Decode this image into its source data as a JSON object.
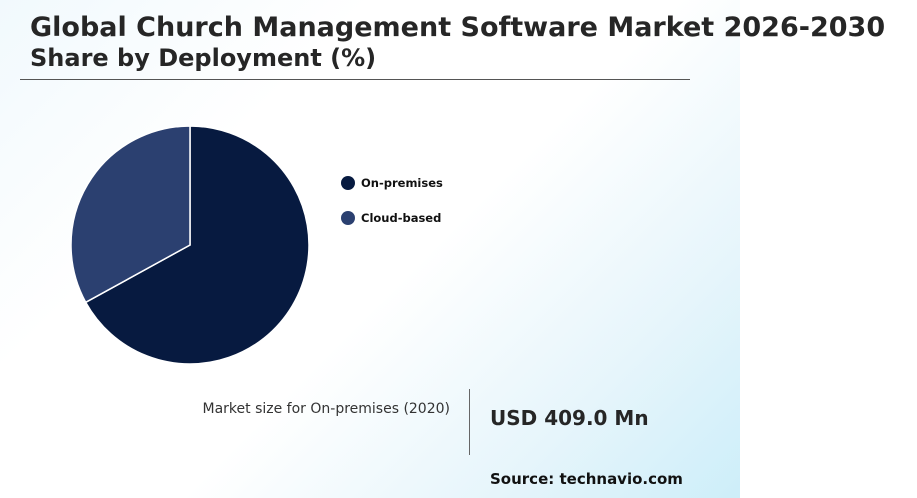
{
  "header": {
    "title": "Global Church Management Software Market 2026-2030",
    "subtitle": "Share by Deployment (%)"
  },
  "chart_data": {
    "type": "pie",
    "categories": [
      "On-premises",
      "Cloud-based"
    ],
    "values": [
      67,
      33
    ],
    "colors": [
      "#071a40",
      "#2b4070"
    ],
    "start_angle_deg": 0,
    "direction": "clockwise",
    "legend_position": "right"
  },
  "kpi": {
    "label": "Market size for On-premises (2020)",
    "value": "USD 409.0 Mn"
  },
  "footer": {
    "source": "Source: technavio.com"
  }
}
